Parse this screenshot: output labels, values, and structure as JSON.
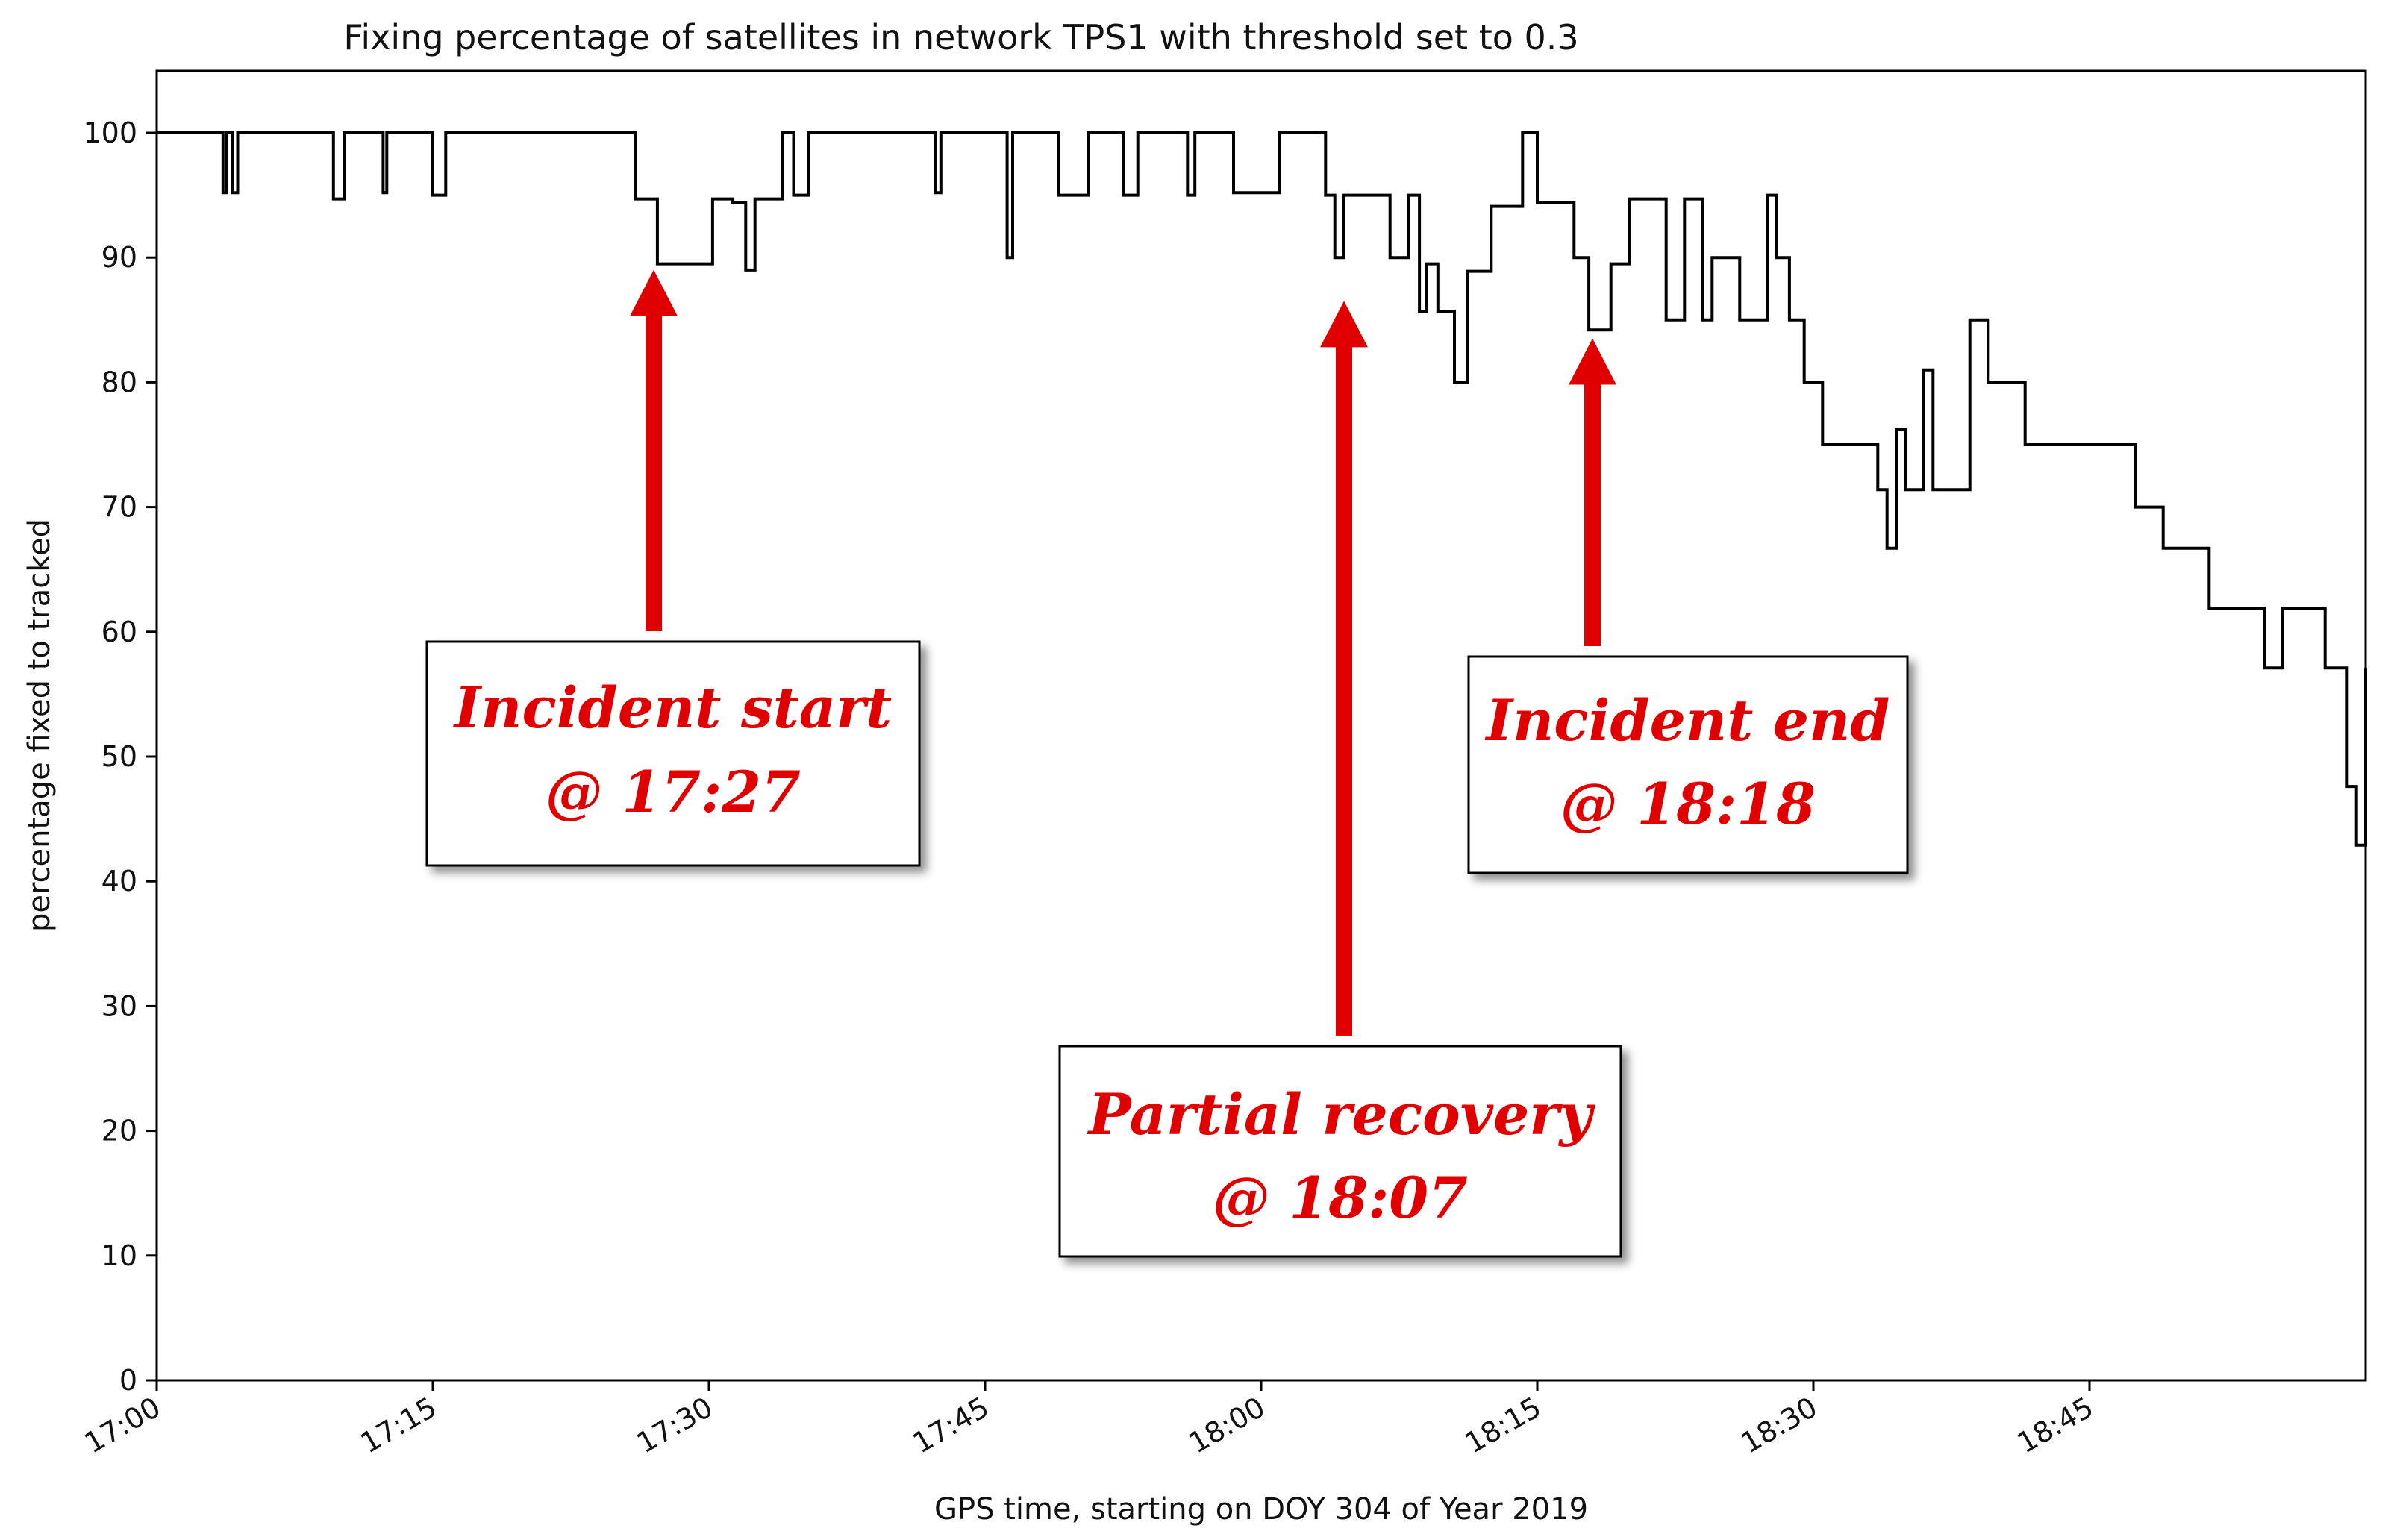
{
  "chart_data": {
    "type": "line",
    "title": "Fixing percentage of satellites in network TPS1 with threshold set to 0.3",
    "xlabel": "GPS time, starting on DOY 304 of Year 2019",
    "ylabel": "percentage fixed to tracked",
    "xlim_minutes": [
      0,
      120
    ],
    "ylim": [
      0,
      105
    ],
    "xticks": [
      {
        "t": 0,
        "label": "17:00"
      },
      {
        "t": 15,
        "label": "17:15"
      },
      {
        "t": 30,
        "label": "17:30"
      },
      {
        "t": 45,
        "label": "17:45"
      },
      {
        "t": 60,
        "label": "18:00"
      },
      {
        "t": 75,
        "label": "18:15"
      },
      {
        "t": 90,
        "label": "18:30"
      },
      {
        "t": 105,
        "label": "18:45"
      }
    ],
    "yticks": [
      0,
      10,
      20,
      30,
      40,
      50,
      60,
      70,
      80,
      90,
      100
    ],
    "series": [
      {
        "name": "fixing percentage",
        "step": true,
        "x": [
          0,
          3.6,
          3.8,
          4.1,
          4.4,
          9.6,
          10.2,
          12.3,
          12.5,
          15.0,
          15.7,
          26.0,
          27.2,
          28.0,
          30.2,
          31.3,
          32.0,
          32.5,
          34.0,
          34.6,
          35.4,
          42.3,
          42.6,
          46.2,
          46.5,
          49.0,
          50.6,
          52.5,
          53.3,
          56.0,
          56.4,
          58.5,
          59.0,
          61.0,
          63.5,
          64.0,
          64.5,
          67.0,
          68.0,
          68.6,
          69.0,
          69.6,
          70.5,
          71.2,
          71.6,
          72.5,
          73.3,
          74.2,
          75.0,
          77.0,
          77.8,
          78.5,
          79.0,
          80.0,
          80.5,
          82.0,
          83.0,
          84.0,
          84.5,
          85.5,
          86.0,
          87.5,
          88.0,
          88.7,
          89.5,
          90.5,
          91.5,
          93.5,
          94.0,
          94.5,
          95.0,
          96.0,
          96.5,
          97.5,
          98.5,
          99.5,
          100.0,
          101.5,
          103.0,
          107.5,
          109.0,
          110.0,
          111.5,
          114.5,
          115.5,
          117.5,
          117.8,
          118.5,
          119.0,
          119.5,
          120.0
        ],
        "y": [
          100,
          95.2,
          100,
          95.2,
          100,
          94.7,
          100,
          95.2,
          100,
          95,
          100,
          94.7,
          89.5,
          89.5,
          94.7,
          94.4,
          89,
          94.7,
          100,
          95,
          100,
          95.2,
          100,
          90,
          100,
          95,
          100,
          95,
          100,
          95,
          100,
          95.2,
          95.2,
          100,
          95,
          90,
          95,
          90,
          95,
          85.7,
          89.5,
          85.7,
          80,
          88.9,
          88.9,
          94.1,
          94.1,
          100,
          94.4,
          90,
          84.2,
          84.2,
          89.5,
          94.7,
          94.7,
          85,
          94.7,
          85,
          90,
          90,
          85,
          95,
          90,
          85,
          80,
          75,
          75,
          71.4,
          66.7,
          76.2,
          71.4,
          81,
          71.4,
          71.4,
          85,
          80,
          80,
          75,
          75,
          70,
          66.7,
          66.7,
          61.9,
          57.1,
          61.9,
          61.9,
          57.1,
          57.1,
          47.6,
          42.9,
          57.1
        ]
      }
    ],
    "annotations": [
      {
        "label_line1": "Incident start",
        "label_line2": "@ 17:27",
        "arrow_t": 27,
        "arrow_y": 89.5
      },
      {
        "label_line1": "Partial recovery",
        "label_line2": "@ 18:07",
        "arrow_t": 64.5,
        "arrow_y": 87
      },
      {
        "label_line1": "Incident end",
        "label_line2": "@ 18:18",
        "arrow_t": 78,
        "arrow_y": 84
      }
    ],
    "grid": false
  },
  "colors": {
    "line": "#000000",
    "annotation": "#e00000",
    "axis": "#000000"
  }
}
